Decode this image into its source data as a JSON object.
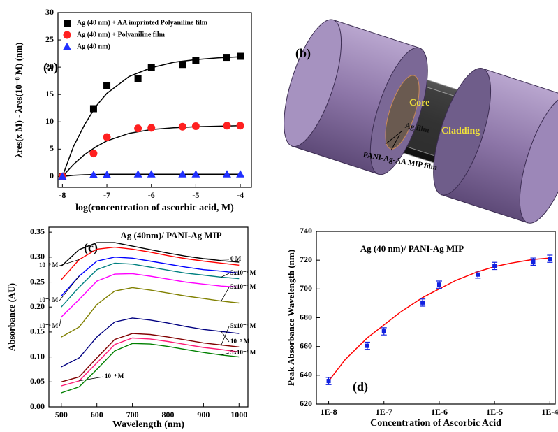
{
  "chart_data": [
    {
      "type": "scatter",
      "panel_label": "(a)",
      "x_label": "log(concentration of ascorbic acid, M)",
      "y_label": "λres(x M) - λres(10⁻⁸ M) (nm)",
      "x": [
        -8,
        -7.3,
        -7,
        -6.3,
        -6,
        -5.3,
        -5,
        -4.3,
        -4
      ],
      "series": [
        {
          "name": "Ag (40 nm) + AA imprinted Polyaniline film",
          "color": "#000000",
          "marker": "square",
          "values": [
            0,
            12.4,
            16.6,
            17.9,
            19.9,
            20.5,
            21.2,
            21.8,
            22.0
          ]
        },
        {
          "name": "Ag (40 nm) + Polyaniline film",
          "color": "#ff2020",
          "marker": "circle",
          "values": [
            0,
            4.2,
            7.2,
            8.8,
            8.9,
            9.1,
            9.2,
            9.3,
            9.3
          ]
        },
        {
          "name": "Ag (40 nm)",
          "color": "#2030ff",
          "marker": "triangle",
          "values": [
            0,
            0.3,
            0.3,
            0.4,
            0.4,
            0.4,
            0.4,
            0.4,
            0.4
          ]
        }
      ],
      "fit_lines": [
        {
          "color": "#000000",
          "x": [
            -8,
            -7.75,
            -7.5,
            -7.25,
            -7,
            -6.5,
            -6,
            -5.5,
            -5,
            -4.5,
            -4
          ],
          "values": [
            0,
            5.5,
            9.5,
            12.8,
            15.2,
            18.3,
            19.9,
            20.9,
            21.4,
            21.7,
            21.9
          ]
        },
        {
          "color": "#000000",
          "x": [
            -8,
            -7.75,
            -7.5,
            -7.25,
            -7,
            -6.5,
            -6,
            -5.5,
            -5,
            -4.5,
            -4
          ],
          "values": [
            0,
            2.2,
            4.0,
            5.4,
            6.5,
            7.9,
            8.6,
            8.9,
            9.1,
            9.2,
            9.3
          ]
        },
        {
          "color": "#000000",
          "x": [
            -8,
            -7.75,
            -7.5,
            -7.25,
            -7,
            -6.5,
            -6,
            -5.5,
            -5,
            -4.5,
            -4
          ],
          "values": [
            0,
            0.2,
            0.3,
            0.35,
            0.4,
            0.4,
            0.4,
            0.4,
            0.4,
            0.4,
            0.4
          ]
        }
      ],
      "xlim": [
        -8.1,
        -3.75
      ],
      "xticks": [
        -8,
        -7,
        -6,
        -5,
        -4
      ],
      "ylim": [
        -2,
        30
      ],
      "yticks": [
        0,
        5,
        10,
        15,
        20,
        25,
        30
      ],
      "legend": "upper left"
    },
    {
      "type": "line",
      "panel_label": "(c)",
      "title": "Ag (40nm)/ PANI-Ag MIP",
      "x_label": "Wavelength (nm)",
      "y_label": "Absorbance (AU)",
      "x": [
        500,
        550,
        600,
        650,
        700,
        750,
        800,
        850,
        900,
        950,
        1000
      ],
      "series": [
        {
          "name": "0 M",
          "color": "#000000",
          "values": [
            0.282,
            0.315,
            0.329,
            0.329,
            0.322,
            0.315,
            0.308,
            0.302,
            0.297,
            0.293,
            0.29
          ]
        },
        {
          "name": "10⁻⁸ M",
          "color": "#ff0000",
          "values": [
            0.255,
            0.295,
            0.316,
            0.32,
            0.316,
            0.31,
            0.303,
            0.297,
            0.292,
            0.288,
            0.284
          ]
        },
        {
          "name": "10⁻⁷ M",
          "color": "#0000ff",
          "values": [
            0.222,
            0.262,
            0.292,
            0.3,
            0.298,
            0.292,
            0.286,
            0.28,
            0.275,
            0.272,
            0.268
          ]
        },
        {
          "name": "5x10⁻⁷ M",
          "color": "#008080",
          "values": [
            0.2,
            0.24,
            0.275,
            0.288,
            0.286,
            0.28,
            0.274,
            0.268,
            0.264,
            0.26,
            0.257
          ]
        },
        {
          "name": "10⁻⁶ M",
          "color": "#ff00ff",
          "values": [
            0.18,
            0.215,
            0.252,
            0.266,
            0.267,
            0.262,
            0.256,
            0.25,
            0.246,
            0.242,
            0.24
          ]
        },
        {
          "name": "5x10⁻⁶ M",
          "color": "#808000",
          "values": [
            0.14,
            0.16,
            0.205,
            0.232,
            0.239,
            0.234,
            0.228,
            0.222,
            0.217,
            0.212,
            0.208
          ]
        },
        {
          "name": "10⁻⁵ M",
          "color": "#000080",
          "values": [
            0.08,
            0.098,
            0.14,
            0.17,
            0.178,
            0.174,
            0.168,
            0.161,
            0.155,
            0.151,
            0.147
          ]
        },
        {
          "name": "5x10⁻⁵ M",
          "color": "#800000",
          "values": [
            0.05,
            0.06,
            0.098,
            0.135,
            0.147,
            0.145,
            0.14,
            0.134,
            0.128,
            0.124,
            0.12
          ]
        },
        {
          "name": "10⁻⁴ M",
          "color": "#ff1a75",
          "values": [
            0.042,
            0.052,
            0.088,
            0.125,
            0.138,
            0.136,
            0.131,
            0.125,
            0.119,
            0.115,
            0.11
          ]
        },
        {
          "name": "5x10⁻⁴ M",
          "color": "#008000",
          "values": [
            0.028,
            0.04,
            0.075,
            0.112,
            0.127,
            0.126,
            0.121,
            0.115,
            0.109,
            0.104,
            0.1
          ]
        }
      ],
      "xlim": [
        465,
        1025
      ],
      "xticks": [
        500,
        600,
        700,
        800,
        900,
        1000
      ],
      "ylim": [
        0,
        0.36
      ],
      "yticks": [
        {
          "value": 0,
          "label": "0.00"
        },
        {
          "value": 0.05,
          "label": "0.05"
        },
        {
          "value": 0.1,
          "label": "0.10"
        },
        {
          "value": 0.15,
          "label": "0.15"
        },
        {
          "value": 0.2,
          "label": "0.20"
        },
        {
          "value": 0.25,
          "label": "0.25"
        },
        {
          "value": 0.3,
          "label": "0.30"
        },
        {
          "value": 0.35,
          "label": "0.35"
        }
      ]
    },
    {
      "type": "scatter",
      "panel_label": "(d)",
      "title": "Ag (40 nm)/ PANI-Ag MIP",
      "x_label": "Concentration of Ascorbic Acid",
      "y_label": "Peak Absorbance Wavelength (nm)",
      "log_x": true,
      "x": [
        1e-08,
        5e-08,
        1e-07,
        5e-07,
        1e-06,
        5e-06,
        1e-05,
        5e-05,
        0.0001
      ],
      "series": [
        {
          "color": "#1020e0",
          "marker": "square",
          "values": [
            636,
            660.5,
            670.5,
            690.5,
            703,
            710,
            716,
            719,
            721
          ],
          "errors": [
            2.5,
            2.5,
            2.5,
            2.5,
            2.5,
            2.5,
            2.5,
            2.5,
            2.5
          ]
        }
      ],
      "fit_lines": [
        {
          "color": "#ff0000",
          "x": [
            1e-08,
            2e-08,
            5e-08,
            1e-07,
            2e-07,
            5e-07,
            1e-06,
            2e-06,
            5e-06,
            1e-05,
            2e-05,
            5e-05,
            0.0001
          ],
          "values": [
            636,
            651,
            666,
            675,
            684,
            694,
            700,
            706,
            712,
            715.5,
            718,
            720.5,
            721.5
          ]
        }
      ],
      "xlim": [
        6e-09,
        0.000125
      ],
      "xticks": [
        {
          "value": 1e-08,
          "label": "1E-8"
        },
        {
          "value": 1e-07,
          "label": "1E-7"
        },
        {
          "value": 1e-06,
          "label": "1E-6"
        },
        {
          "value": 1e-05,
          "label": "1E-5"
        },
        {
          "value": 0.0001,
          "label": "1E-4"
        }
      ],
      "ylim": [
        620,
        740
      ],
      "yticks": [
        620,
        640,
        660,
        680,
        700,
        720,
        740
      ]
    }
  ],
  "diagram": {
    "panel_label": "(b)",
    "core": "Core",
    "cladding": "Cladding",
    "ag_film": "Ag film",
    "mip_film": "PANI-Ag-AA MIP film"
  }
}
